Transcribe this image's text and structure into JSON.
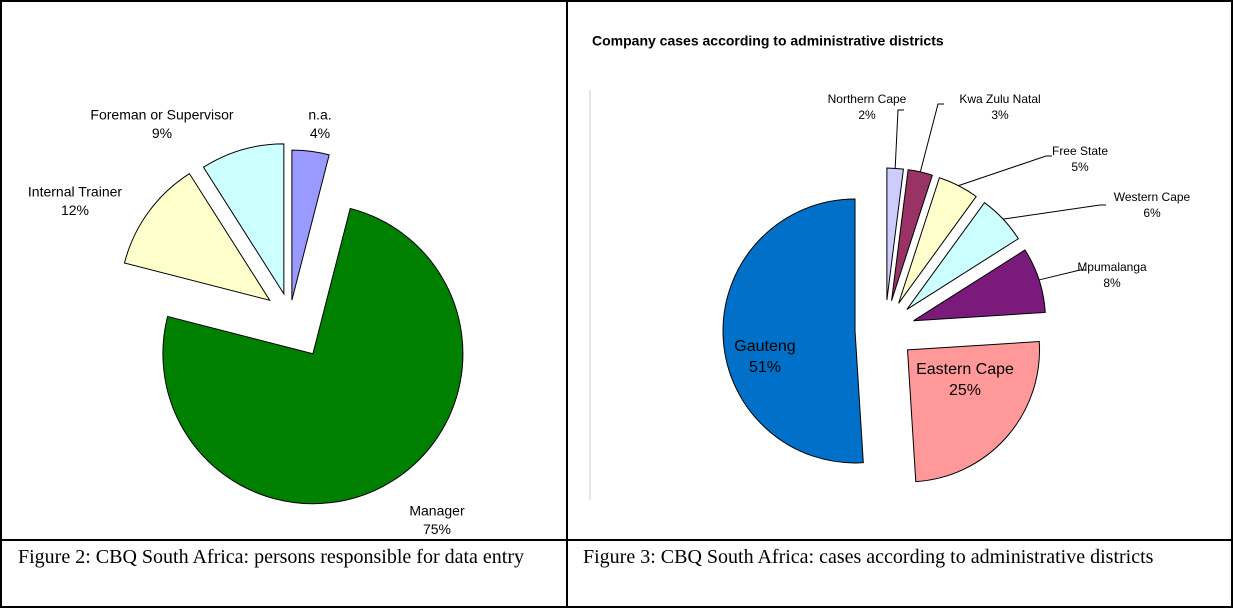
{
  "chart_data": [
    {
      "type": "pie",
      "categories": [
        "n.a.",
        "Manager",
        "Internal Trainer",
        "Foreman or Supervisor"
      ],
      "values": [
        4,
        75,
        12,
        9
      ],
      "value_labels": [
        "4%",
        "75%",
        "12%",
        "9%"
      ],
      "colors": [
        "#9999ff",
        "#008000",
        "#ffffcc",
        "#ccffff"
      ]
    },
    {
      "type": "pie",
      "title": "Company cases according to administrative districts",
      "categories": [
        "Northern Cape",
        "Kwa Zulu Natal",
        "Free State",
        "Western Cape",
        "Mpumalanga",
        "Eastern Cape",
        "Gauteng"
      ],
      "values": [
        2,
        3,
        5,
        6,
        8,
        25,
        51
      ],
      "value_labels": [
        "2%",
        "3%",
        "5%",
        "6%",
        "8%",
        "25%",
        "51%"
      ],
      "colors": [
        "#ccccff",
        "#993366",
        "#ffffcc",
        "#ccffff",
        "#7a1a7a",
        "#ff9999",
        "#0070c8"
      ]
    }
  ],
  "captions": [
    "Figure 2: CBQ South Africa: persons responsible for data entry",
    "Figure 3: CBQ South Africa: cases according to administrative districts"
  ]
}
